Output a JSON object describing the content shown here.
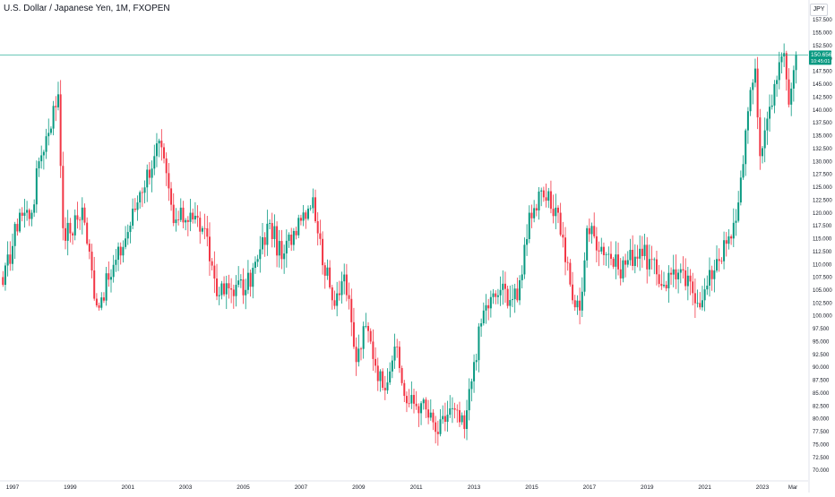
{
  "header": {
    "symbol_title": "U.S. Dollar / Japanese Yen, 1M, FXOPEN",
    "currency_button": "JPY"
  },
  "price_tag": {
    "price": "150.656",
    "countdown": "10:45:01"
  },
  "time_axis": {
    "extra_label": "Mar"
  },
  "colors": {
    "up": "#089981",
    "down": "#f23645",
    "price_line": "#22ab94",
    "axis_text": "#131722"
  },
  "chart_data": {
    "type": "candlestick",
    "interval": "1M",
    "ylim": [
      70,
      157.5
    ],
    "yticks": [
      "70.000",
      "72.500",
      "75.000",
      "77.500",
      "80.000",
      "82.500",
      "85.000",
      "87.500",
      "90.000",
      "92.500",
      "95.000",
      "97.500",
      "100.000",
      "102.500",
      "105.000",
      "107.500",
      "110.000",
      "112.500",
      "115.000",
      "117.500",
      "120.000",
      "122.500",
      "125.000",
      "127.500",
      "130.000",
      "132.500",
      "135.000",
      "137.500",
      "140.000",
      "142.500",
      "145.000",
      "147.500",
      "150.000",
      "152.500",
      "155.000",
      "157.500"
    ],
    "xticks": [
      "1997",
      "1999",
      "2001",
      "2003",
      "2005",
      "2007",
      "2009",
      "2011",
      "2013",
      "2015",
      "2017",
      "2019",
      "2021",
      "2023"
    ],
    "last_price": 150.656,
    "keyframes": [
      {
        "date": "1996-09",
        "close": 106
      },
      {
        "date": "1997-04",
        "close": 120
      },
      {
        "date": "1997-09",
        "close": 120
      },
      {
        "date": "1997-12",
        "close": 130
      },
      {
        "date": "1998-08",
        "close": 143
      },
      {
        "date": "1998-10",
        "close": 117
      },
      {
        "date": "1999-01",
        "close": 116
      },
      {
        "date": "1999-06",
        "close": 121
      },
      {
        "date": "1999-12",
        "close": 102
      },
      {
        "date": "2000-05",
        "close": 107
      },
      {
        "date": "2000-12",
        "close": 115
      },
      {
        "date": "2001-06",
        "close": 124
      },
      {
        "date": "2001-12",
        "close": 131
      },
      {
        "date": "2002-02",
        "close": 134
      },
      {
        "date": "2002-08",
        "close": 118
      },
      {
        "date": "2003-03",
        "close": 120
      },
      {
        "date": "2003-08",
        "close": 117
      },
      {
        "date": "2004-03",
        "close": 104
      },
      {
        "date": "2004-10",
        "close": 106
      },
      {
        "date": "2005-02",
        "close": 105
      },
      {
        "date": "2005-07",
        "close": 111
      },
      {
        "date": "2005-12",
        "close": 118
      },
      {
        "date": "2006-05",
        "close": 111
      },
      {
        "date": "2006-12",
        "close": 119
      },
      {
        "date": "2007-06",
        "close": 123
      },
      {
        "date": "2007-08",
        "close": 116
      },
      {
        "date": "2008-02",
        "close": 103
      },
      {
        "date": "2008-07",
        "close": 108
      },
      {
        "date": "2008-12",
        "close": 91
      },
      {
        "date": "2009-04",
        "close": 98
      },
      {
        "date": "2009-11",
        "close": 86
      },
      {
        "date": "2010-04",
        "close": 94
      },
      {
        "date": "2010-09",
        "close": 83
      },
      {
        "date": "2011-03",
        "close": 83
      },
      {
        "date": "2011-10",
        "close": 77
      },
      {
        "date": "2012-03",
        "close": 82
      },
      {
        "date": "2012-09",
        "close": 78
      },
      {
        "date": "2013-01",
        "close": 91
      },
      {
        "date": "2013-05",
        "close": 101
      },
      {
        "date": "2013-12",
        "close": 105
      },
      {
        "date": "2014-07",
        "close": 103
      },
      {
        "date": "2014-12",
        "close": 120
      },
      {
        "date": "2015-06",
        "close": 123
      },
      {
        "date": "2015-12",
        "close": 120
      },
      {
        "date": "2016-06",
        "close": 103
      },
      {
        "date": "2016-09",
        "close": 101
      },
      {
        "date": "2016-12",
        "close": 117
      },
      {
        "date": "2017-09",
        "close": 112
      },
      {
        "date": "2018-01",
        "close": 109
      },
      {
        "date": "2018-10",
        "close": 113
      },
      {
        "date": "2019-08",
        "close": 106
      },
      {
        "date": "2019-12",
        "close": 109
      },
      {
        "date": "2020-12",
        "close": 103
      },
      {
        "date": "2021-06",
        "close": 111
      },
      {
        "date": "2021-12",
        "close": 115
      },
      {
        "date": "2022-03",
        "close": 122
      },
      {
        "date": "2022-06",
        "close": 136
      },
      {
        "date": "2022-10",
        "close": 148
      },
      {
        "date": "2022-12",
        "close": 131
      },
      {
        "date": "2023-02",
        "close": 136
      },
      {
        "date": "2023-06",
        "close": 145
      },
      {
        "date": "2023-10",
        "close": 151
      },
      {
        "date": "2023-12",
        "close": 141
      },
      {
        "date": "2024-03",
        "close": 150.656
      }
    ]
  }
}
